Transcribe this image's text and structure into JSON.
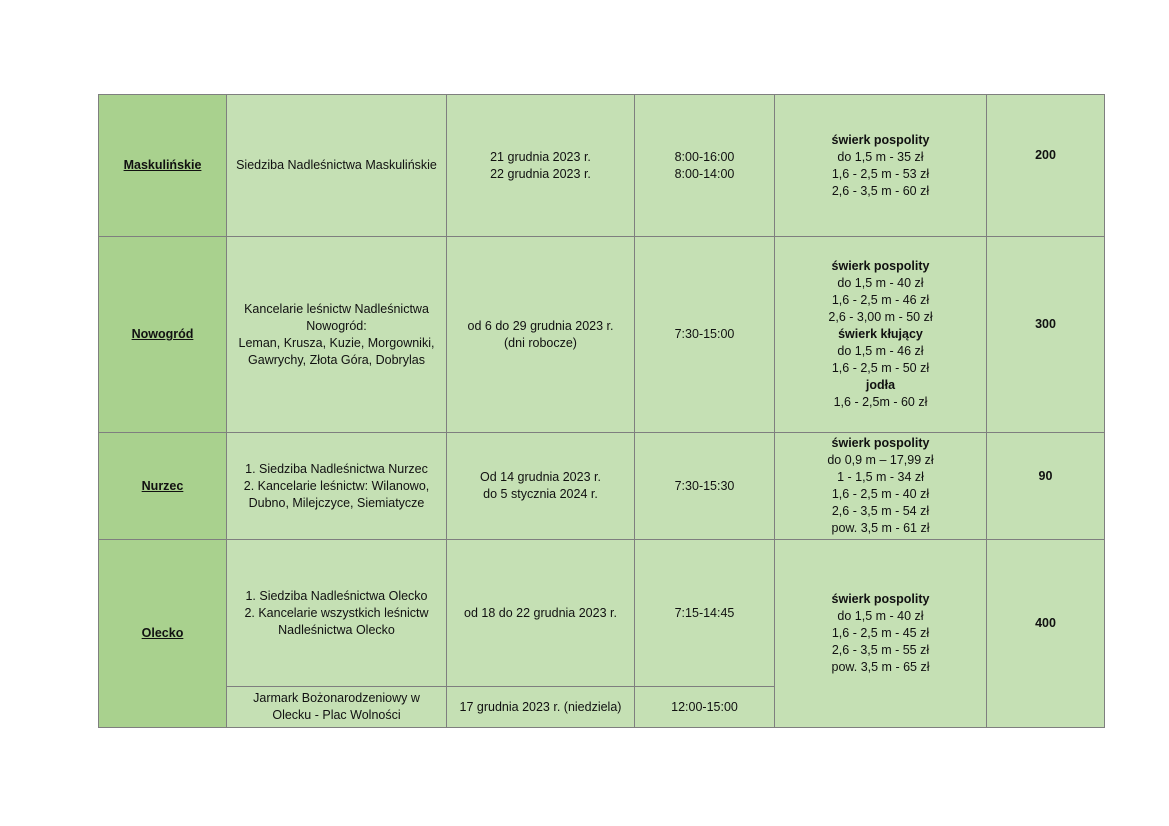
{
  "colors": {
    "name_column": "#a9d18e",
    "cells": "#c5e0b4",
    "border": "#7f7f7f"
  },
  "rows": [
    {
      "name": "Maskulińskie",
      "entries": [
        {
          "location": [
            "Siedziba Nadleśnictwa Maskulińskie"
          ],
          "dates": [
            "21 grudnia 2023 r.",
            "22 grudnia 2023 r."
          ],
          "hours": [
            "8:00-16:00",
            "8:00-14:00"
          ]
        }
      ],
      "prices": [
        {
          "t": "świerk pospolity",
          "b": true
        },
        {
          "t": "do 1,5 m - 35 zł"
        },
        {
          "t": "1,6 - 2,5 m - 53 zł"
        },
        {
          "t": "2,6 - 3,5 m - 60 zł"
        }
      ],
      "count": "200"
    },
    {
      "name": "Nowogród",
      "entries": [
        {
          "location": [
            "Kancelarie leśnictw Nadleśnictwa",
            "Nowogród:",
            "Leman, Krusza, Kuzie, Morgowniki,",
            "Gawrychy, Złota Góra, Dobrylas"
          ],
          "dates": [
            "od 6 do 29 grudnia 2023 r.",
            "(dni robocze)"
          ],
          "hours": [
            "7:30-15:00"
          ]
        }
      ],
      "prices": [
        {
          "t": "świerk pospolity",
          "b": true
        },
        {
          "t": "do 1,5 m - 40 zł"
        },
        {
          "t": "1,6 - 2,5 m - 46 zł"
        },
        {
          "t": "2,6 - 3,00 m - 50 zł"
        },
        {
          "t": "świerk kłujący",
          "b": true
        },
        {
          "t": "do 1,5 m - 46 zł"
        },
        {
          "t": "1,6 - 2,5 m - 50 zł"
        },
        {
          "t": "jodła",
          "b": true
        },
        {
          "t": "1,6 - 2,5m - 60 zł"
        }
      ],
      "count": "300"
    },
    {
      "name": "Nurzec",
      "entries": [
        {
          "location": [
            "1. Siedziba Nadleśnictwa Nurzec",
            "2. Kancelarie leśnictw: Wilanowo,",
            "Dubno, Milejczyce, Siemiatycze"
          ],
          "dates": [
            "Od 14 grudnia 2023 r.",
            "do 5 stycznia 2024 r."
          ],
          "hours": [
            "7:30-15:30"
          ]
        }
      ],
      "prices": [
        {
          "t": "świerk pospolity",
          "b": true
        },
        {
          "t": "do 0,9 m – 17,99 zł"
        },
        {
          "t": "1 - 1,5 m - 34 zł"
        },
        {
          "t": "1,6 - 2,5 m - 40 zł"
        },
        {
          "t": "2,6 - 3,5 m - 54 zł"
        },
        {
          "t": "pow. 3,5 m - 61 zł"
        }
      ],
      "count": "90"
    },
    {
      "name": "Olecko",
      "entries": [
        {
          "location": [
            "1. Siedziba Nadleśnictwa Olecko",
            "2. Kancelarie wszystkich leśnictw",
            "Nadleśnictwa Olecko"
          ],
          "dates": [
            "od 18 do 22 grudnia 2023 r."
          ],
          "hours": [
            "7:15-14:45"
          ]
        },
        {
          "location": [
            "Jarmark Bożonarodzeniowy w",
            "Olecku - Plac Wolności"
          ],
          "dates": [
            "17 grudnia 2023 r. (niedziela)"
          ],
          "hours": [
            "12:00-15:00"
          ]
        }
      ],
      "prices": [
        {
          "t": "świerk pospolity",
          "b": true
        },
        {
          "t": "do 1,5 m - 40 zł"
        },
        {
          "t": "1,6 - 2,5 m - 45 zł"
        },
        {
          "t": "2,6 - 3,5 m - 55 zł"
        },
        {
          "t": "pow. 3,5 m - 65 zł"
        }
      ],
      "count": "400"
    }
  ]
}
